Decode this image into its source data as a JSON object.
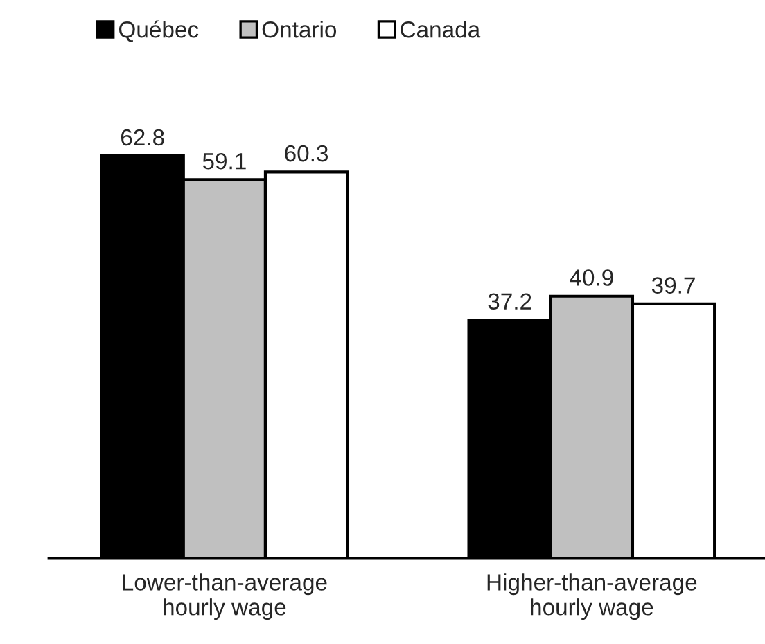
{
  "chart_data": {
    "type": "bar",
    "categories": [
      "Lower-than-average\nhourly wage",
      "Higher-than-average\nhourly wage"
    ],
    "series": [
      {
        "name": "Québec",
        "color": "#000000",
        "values": [
          62.8,
          37.2
        ]
      },
      {
        "name": "Ontario",
        "color": "#c0c0c0",
        "values": [
          59.1,
          40.9
        ]
      },
      {
        "name": "Canada",
        "color": "#ffffff",
        "values": [
          60.3,
          39.7
        ]
      }
    ],
    "data_labels": true,
    "legend": "top left",
    "grid": false
  }
}
